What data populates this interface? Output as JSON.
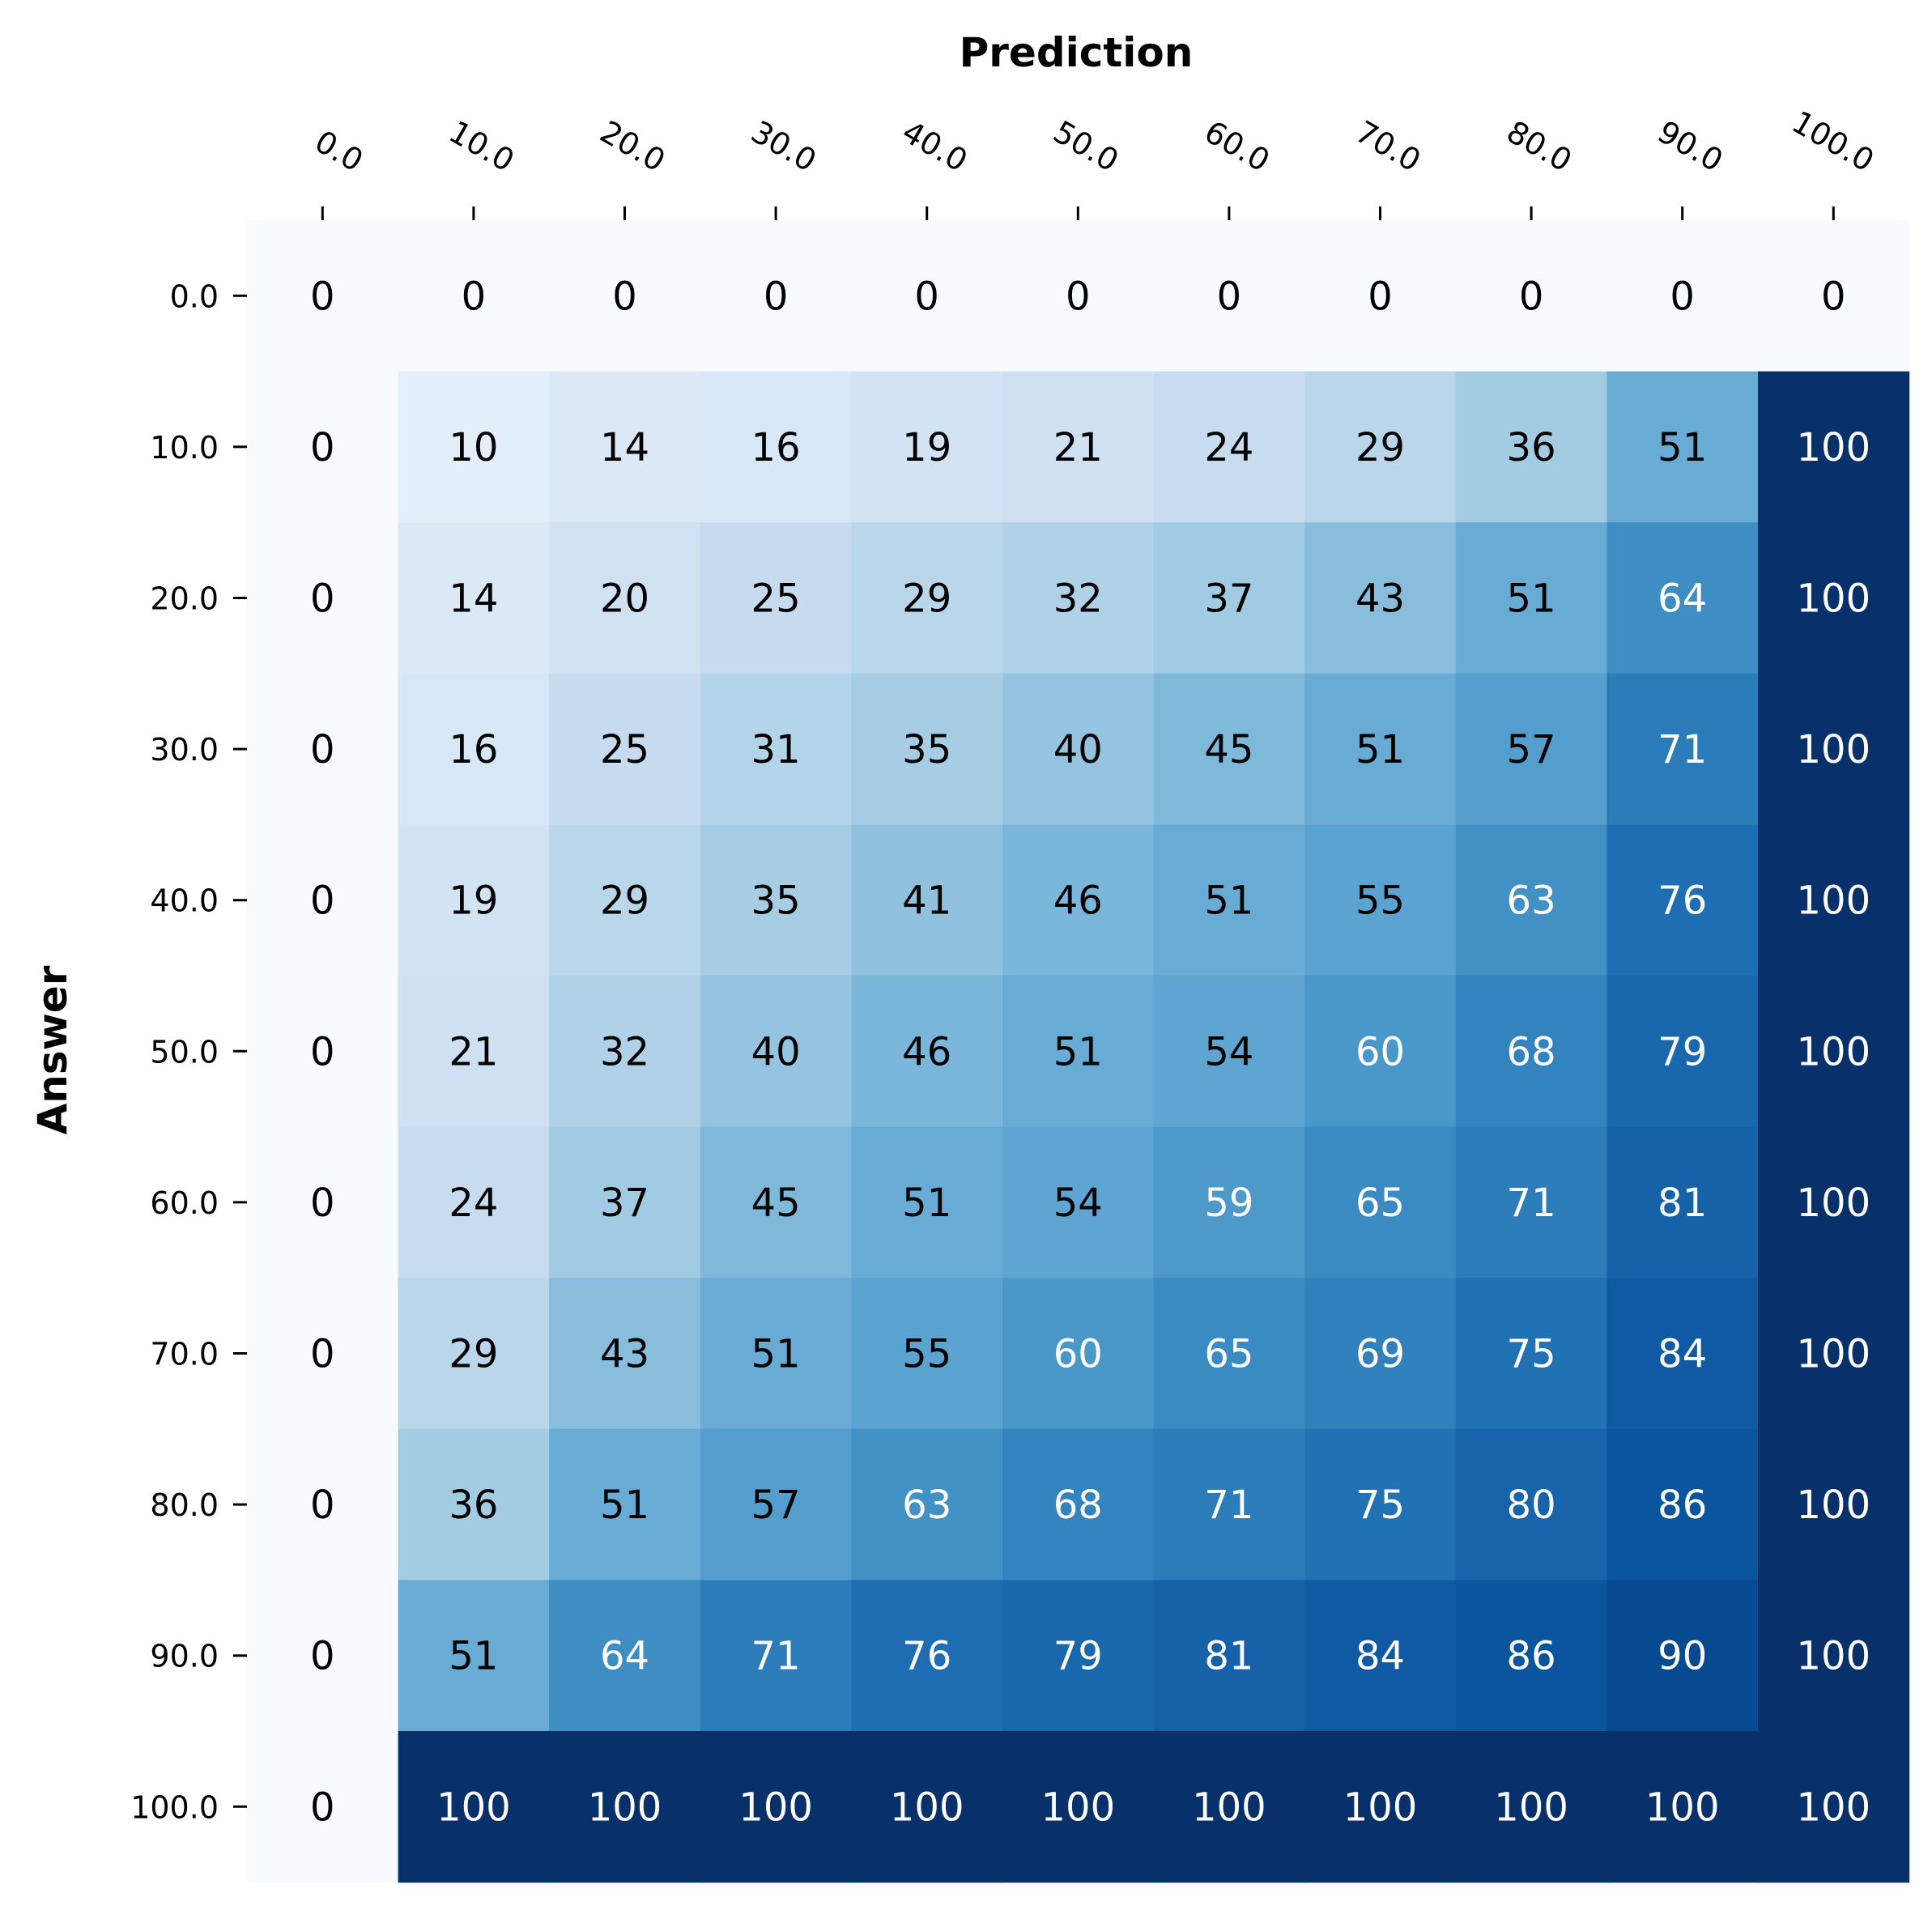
{
  "chart_data": {
    "type": "heatmap",
    "title": "",
    "xlabel": "Prediction",
    "ylabel": "Answer",
    "x_labels": [
      "0.0",
      "10.0",
      "20.0",
      "30.0",
      "40.0",
      "50.0",
      "60.0",
      "70.0",
      "80.0",
      "90.0",
      "100.0"
    ],
    "y_labels": [
      "0.0",
      "10.0",
      "20.0",
      "30.0",
      "40.0",
      "50.0",
      "60.0",
      "70.0",
      "80.0",
      "90.0",
      "100.0"
    ],
    "x_axis_position": "top",
    "x_tick_rotation": "angled",
    "colormap": "Blues",
    "value_range": [
      0,
      100
    ],
    "colorbar": false,
    "annotated": true,
    "values": [
      [
        0,
        0,
        0,
        0,
        0,
        0,
        0,
        0,
        0,
        0,
        0
      ],
      [
        0,
        10,
        14,
        16,
        19,
        21,
        24,
        29,
        36,
        51,
        100
      ],
      [
        0,
        14,
        20,
        25,
        29,
        32,
        37,
        43,
        51,
        64,
        100
      ],
      [
        0,
        16,
        25,
        31,
        35,
        40,
        45,
        51,
        57,
        71,
        100
      ],
      [
        0,
        19,
        29,
        35,
        41,
        46,
        51,
        55,
        63,
        76,
        100
      ],
      [
        0,
        21,
        32,
        40,
        46,
        51,
        54,
        60,
        68,
        79,
        100
      ],
      [
        0,
        24,
        37,
        45,
        51,
        54,
        59,
        65,
        71,
        81,
        100
      ],
      [
        0,
        29,
        43,
        51,
        55,
        60,
        65,
        69,
        75,
        84,
        100
      ],
      [
        0,
        36,
        51,
        57,
        63,
        68,
        71,
        75,
        80,
        86,
        100
      ],
      [
        0,
        51,
        64,
        71,
        76,
        79,
        81,
        84,
        86,
        90,
        100
      ],
      [
        0,
        100,
        100,
        100,
        100,
        100,
        100,
        100,
        100,
        100,
        100
      ]
    ]
  }
}
